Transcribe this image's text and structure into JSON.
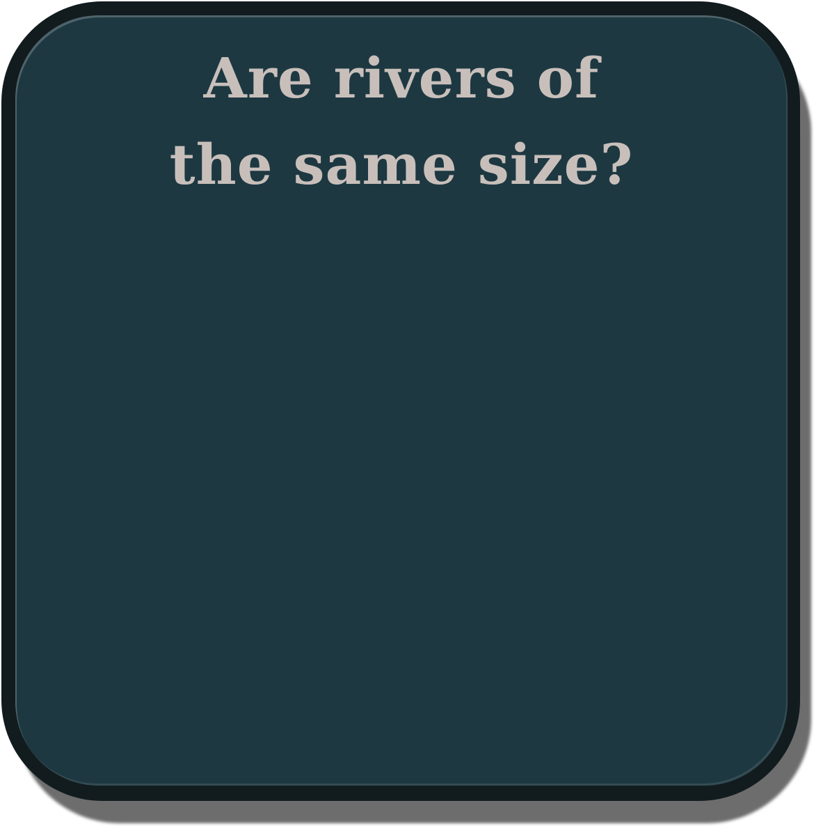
{
  "card": {
    "title_lines": [
      "Are rivers of",
      "the same size?"
    ],
    "colors": {
      "face": "#1d3841",
      "frame": "#121c1f",
      "shadow": "#6d6d6d",
      "text": "#c8bfbb"
    }
  }
}
